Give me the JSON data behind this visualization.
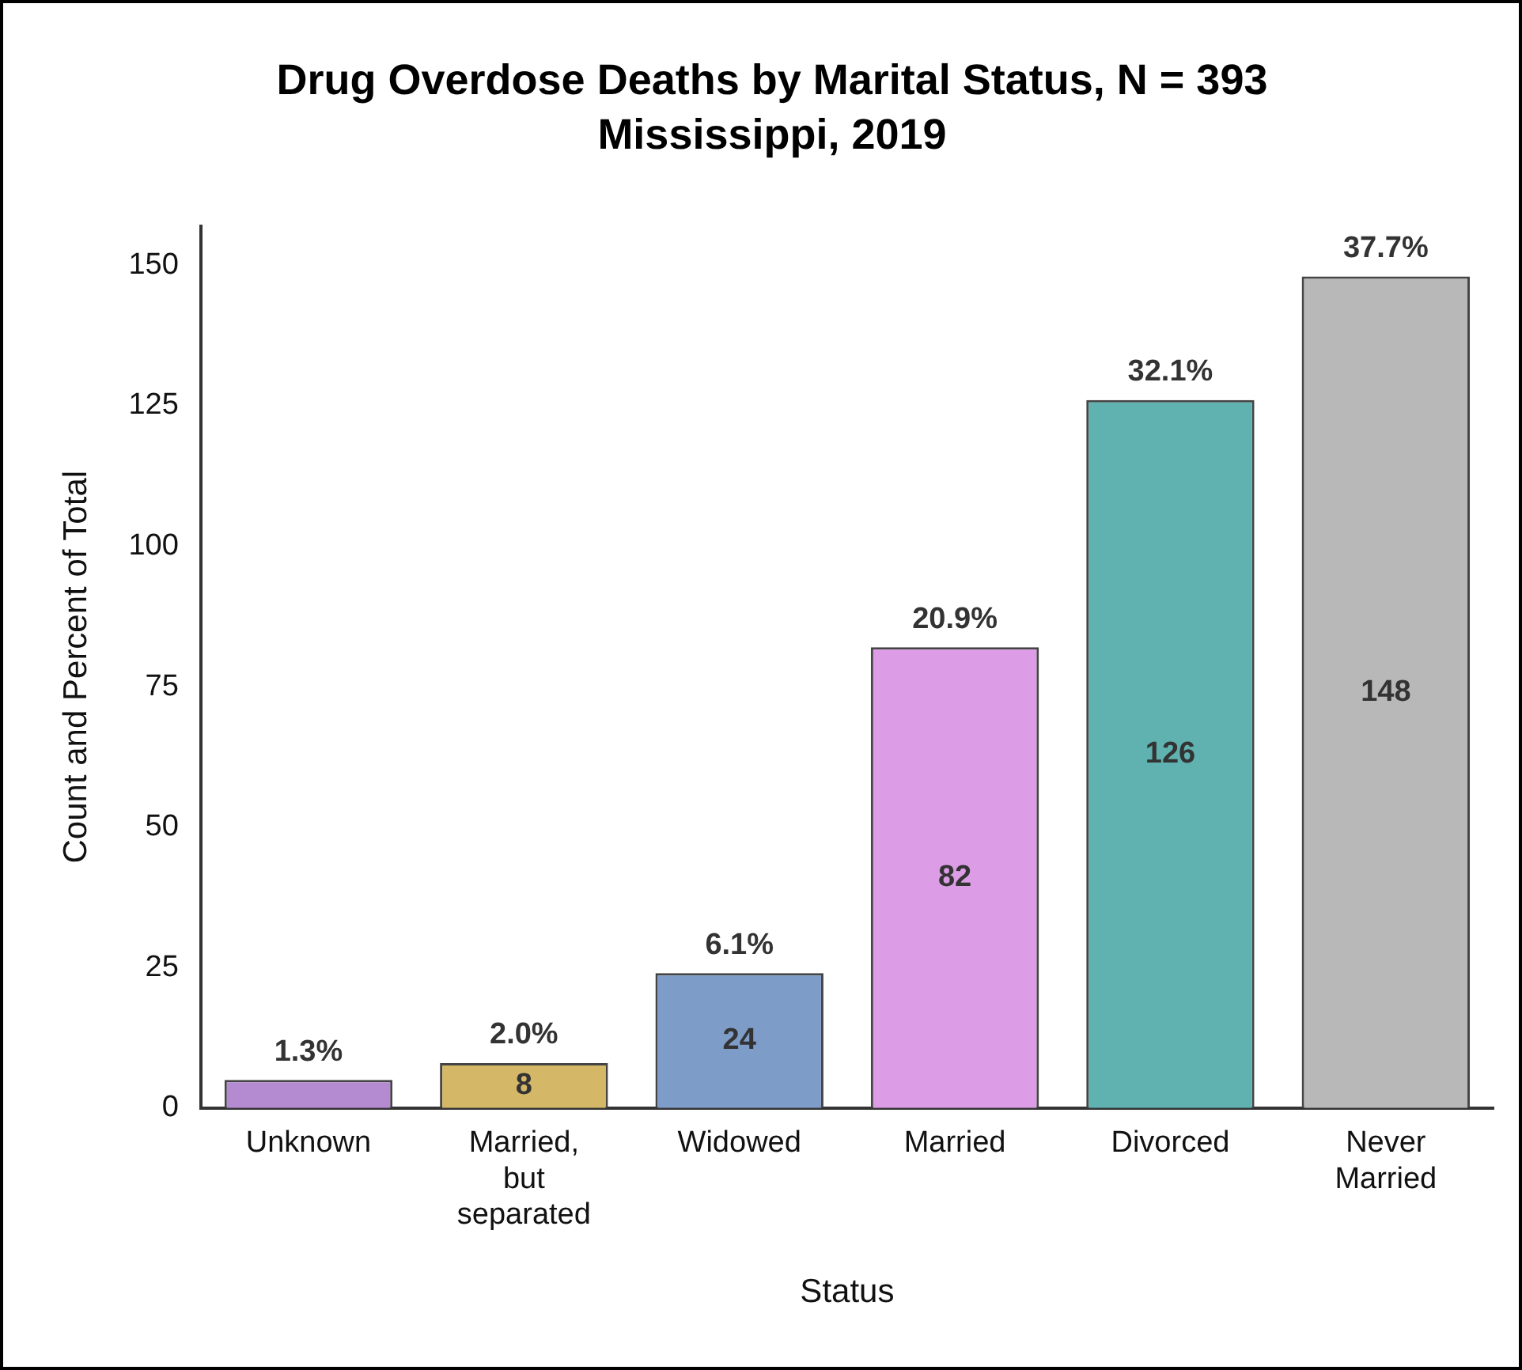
{
  "chart_data": {
    "type": "bar",
    "title": "Drug Overdose Deaths by Marital Status, N = 393",
    "subtitle": "Mississippi, 2019",
    "xlabel": "Status",
    "ylabel": "Count and Percent of Total",
    "categories": [
      "Unknown",
      "Married, but separated",
      "Widowed",
      "Married",
      "Divorced",
      "Never Married"
    ],
    "values": [
      5,
      8,
      24,
      82,
      126,
      148
    ],
    "colors": [
      "#b48ad0",
      "#d4b868",
      "#7d9cc8",
      "#dc9ce6",
      "#5fb2b0",
      "#b8b8b8"
    ],
    "value_labels": [
      null,
      "8",
      "24",
      "82",
      "126",
      "148"
    ],
    "annotations": [
      {
        "text": "1.3%",
        "x": "Unknown",
        "y": 5
      },
      {
        "text": "2.0%",
        "x": "Married, but separated",
        "y": 8
      },
      {
        "text": "6.1%",
        "x": "Widowed",
        "y": 24
      },
      {
        "text": "20.9%",
        "x": "Married",
        "y": 82
      },
      {
        "text": "32.1%",
        "x": "Divorced",
        "y": 126
      },
      {
        "text": "37.7%",
        "x": "Never Married",
        "y": 148
      }
    ],
    "ylim": [
      0,
      157
    ],
    "yticks": [
      0,
      25,
      50,
      75,
      100,
      125,
      150
    ],
    "grid": false,
    "legend": false
  }
}
